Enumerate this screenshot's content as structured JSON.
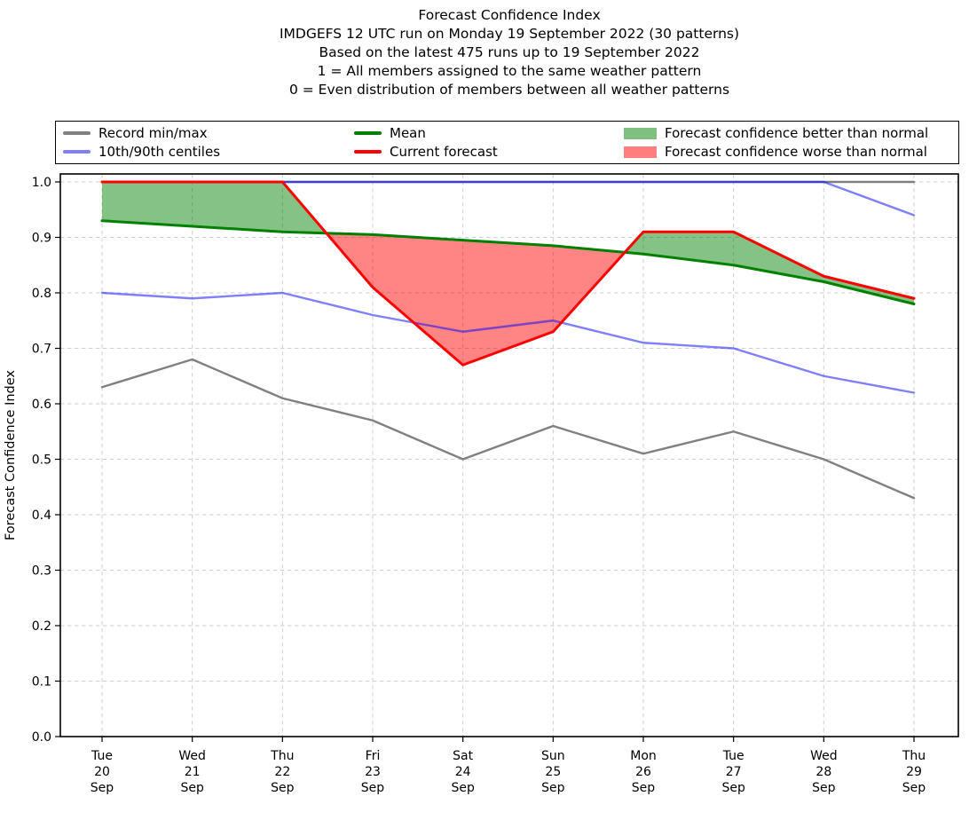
{
  "title": {
    "lines": [
      "Forecast Confidence Index",
      "IMDGEFS 12 UTC run on Monday 19 September 2022 (30 patterns)",
      "Based on the latest 475 runs up to 19 September 2022",
      "1 = All members assigned to the same weather pattern",
      "0 = Even distribution of members between all weather patterns"
    ]
  },
  "legend": {
    "items": [
      {
        "label": "Record min/max",
        "type": "line",
        "color": "#808080"
      },
      {
        "label": "10th/90th centiles",
        "type": "line",
        "color": "#8080ff"
      },
      {
        "label": "Mean",
        "type": "line",
        "color": "#008000"
      },
      {
        "label": "Current forecast",
        "type": "line",
        "color": "#ff0000"
      },
      {
        "label": "Forecast confidence better than normal",
        "type": "patch",
        "color": "#7fbf7f"
      },
      {
        "label": "Forecast confidence worse than normal",
        "type": "patch",
        "color": "#ff7f7f"
      }
    ]
  },
  "chart_data": {
    "type": "line",
    "title": "Forecast Confidence Index",
    "xlabel": "",
    "ylabel": "Forecast Confidence Index",
    "ylim": [
      0.0,
      1.0144
    ],
    "grid": true,
    "legend_position": "top",
    "y_ticks": [
      "0.0",
      "0.1",
      "0.2",
      "0.3",
      "0.4",
      "0.5",
      "0.6",
      "0.7",
      "0.8",
      "0.9",
      "1.0"
    ],
    "x_labels": [
      {
        "day": "Tue",
        "date": "20",
        "month": "Sep"
      },
      {
        "day": "Wed",
        "date": "21",
        "month": "Sep"
      },
      {
        "day": "Thu",
        "date": "22",
        "month": "Sep"
      },
      {
        "day": "Fri",
        "date": "23",
        "month": "Sep"
      },
      {
        "day": "Sat",
        "date": "24",
        "month": "Sep"
      },
      {
        "day": "Sun",
        "date": "25",
        "month": "Sep"
      },
      {
        "day": "Mon",
        "date": "26",
        "month": "Sep"
      },
      {
        "day": "Tue",
        "date": "27",
        "month": "Sep"
      },
      {
        "day": "Wed",
        "date": "28",
        "month": "Sep"
      },
      {
        "day": "Thu",
        "date": "29",
        "month": "Sep"
      }
    ],
    "series": [
      {
        "name": "Record max",
        "color": "#808080",
        "values": [
          1.0,
          1.0,
          1.0,
          1.0,
          1.0,
          1.0,
          1.0,
          1.0,
          1.0,
          1.0
        ]
      },
      {
        "name": "Record min",
        "color": "#808080",
        "values": [
          0.63,
          0.68,
          0.61,
          0.57,
          0.5,
          0.56,
          0.51,
          0.55,
          0.5,
          0.43
        ]
      },
      {
        "name": "90th centile",
        "color": "rgba(0,0,255,0.5)",
        "values": [
          1.0,
          1.0,
          1.0,
          1.0,
          1.0,
          1.0,
          1.0,
          1.0,
          1.0,
          0.94
        ]
      },
      {
        "name": "10th centile",
        "color": "rgba(0,0,255,0.5)",
        "values": [
          0.8,
          0.79,
          0.8,
          0.76,
          0.73,
          0.75,
          0.71,
          0.7,
          0.65,
          0.62
        ]
      },
      {
        "name": "Mean",
        "color": "#008000",
        "values": [
          0.93,
          0.92,
          0.91,
          0.905,
          0.895,
          0.885,
          0.87,
          0.85,
          0.82,
          0.78
        ]
      },
      {
        "name": "Current forecast",
        "color": "#ff0000",
        "values": [
          1.0,
          1.0,
          1.0,
          0.81,
          0.67,
          0.73,
          0.91,
          0.91,
          0.83,
          0.79
        ]
      }
    ],
    "fills": {
      "between": [
        "Current forecast",
        "Mean"
      ],
      "better_than_normal_color": "rgba(0,128,0,0.48)",
      "worse_than_normal_color": "rgba(255,0,0,0.48)"
    }
  }
}
